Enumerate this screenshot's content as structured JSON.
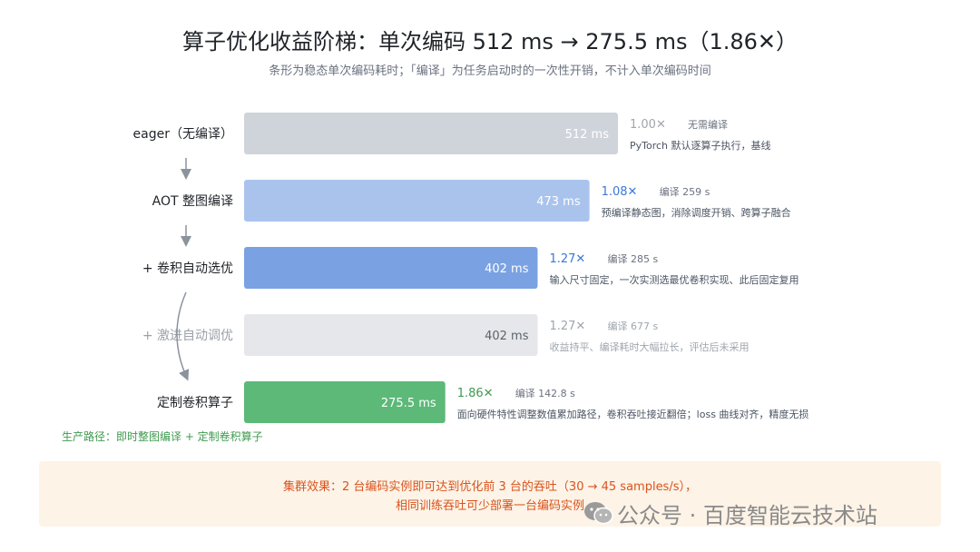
{
  "title": "算子优化收益阶梯：单次编码 512 ms → 275.5 ms（1.86✕）",
  "subtitle": "条形为稳态单次编码耗时；「编译」为任务启动时的一次性开销，不计入单次编码时间",
  "production_path": "生产路径：即时整图编译 + 定制卷积算子",
  "footer": {
    "line1": "集群效果：2 台编码实例即可达到优化前 3 台的吞吐（30 → 45 samples/s），",
    "line2": "相同训练吞吐可少部署一台编码实例"
  },
  "watermark": {
    "icon": "wechat-icon",
    "text": "公众号 · 百度智能云技术站"
  },
  "colors": {
    "eager": "#cfd4db",
    "aot": "#a9c3ed",
    "conv_tune": "#7aa2e2",
    "aggressive": "#e5e7ea",
    "custom": "#5cb978",
    "blue_speedup": "#3b78d8",
    "green_speedup": "#3f9a4f",
    "gray_text": "#a0a6ae"
  },
  "chart_data": {
    "type": "bar",
    "orientation": "horizontal",
    "title": "算子优化收益阶梯：单次编码 512 ms → 275.5 ms（1.86✕）",
    "subtitle": "条形为稳态单次编码耗时；「编译」为任务启动时的一次性开销，不计入单次编码时间",
    "unit": "ms",
    "grid": false,
    "xlim": [
      0,
      512
    ],
    "bars": [
      {
        "label": "eager（无编译）",
        "value": 512,
        "value_label": "512 ms",
        "speedup": "1.00✕",
        "compile": "无需编译",
        "note": "PyTorch 默认逐算子执行，基线",
        "style": "eager"
      },
      {
        "label": "AOT 整图编译",
        "value": 473,
        "value_label": "473 ms",
        "speedup": "1.08✕",
        "compile": "编译 259 s",
        "note": "预编译静态图，消除调度开销、跨算子融合",
        "style": "aot"
      },
      {
        "label": "+ 卷积自动选优",
        "value": 402,
        "value_label": "402 ms",
        "speedup": "1.27✕",
        "compile": "编译 285 s",
        "note": "输入尺寸固定，一次实测选最优卷积实现、此后固定复用",
        "style": "conv_tune"
      },
      {
        "label": "+ 激进自动调优",
        "value": 402,
        "value_label": "402 ms",
        "speedup": "1.27✕",
        "compile": "编译 677 s",
        "note": "收益持平、编译耗时大幅拉长，评估后未采用",
        "style": "aggressive"
      },
      {
        "label": "定制卷积算子",
        "value": 275.5,
        "value_label": "275.5 ms",
        "speedup": "1.86✕",
        "compile": "编译 142.8 s",
        "note": "面向硬件特性调整数值累加路径，卷积吞吐接近翻倍；loss 曲线对齐，精度无损",
        "style": "custom"
      }
    ]
  }
}
